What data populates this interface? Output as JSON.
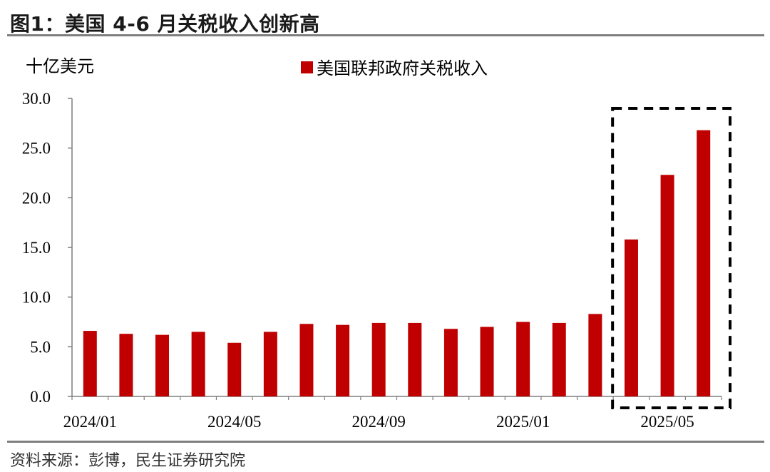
{
  "figure_title": "图1：美国 4-6 月关税收入创新高",
  "source": "资料来源：彭博，民生证券研究院",
  "chart_data": {
    "type": "bar",
    "unit_label": "十亿美元",
    "categories": [
      "2024/01",
      "2024/02",
      "2024/03",
      "2024/04",
      "2024/05",
      "2024/06",
      "2024/07",
      "2024/08",
      "2024/09",
      "2024/10",
      "2024/11",
      "2024/12",
      "2025/01",
      "2025/02",
      "2025/03",
      "2025/04",
      "2025/05",
      "2025/06"
    ],
    "x_tick_labels": [
      "2024/01",
      "2024/05",
      "2024/09",
      "2025/01",
      "2025/05"
    ],
    "series": [
      {
        "name": "美国联邦政府关税收入",
        "color": "#C00000",
        "values": [
          6.6,
          6.3,
          6.2,
          6.5,
          5.4,
          6.5,
          7.3,
          7.2,
          7.4,
          7.4,
          6.8,
          7.0,
          7.5,
          7.4,
          8.3,
          15.8,
          22.3,
          26.8
        ]
      }
    ],
    "ylim": [
      0,
      30
    ],
    "yticks": [
      "0.0",
      "5.0",
      "10.0",
      "15.0",
      "20.0",
      "25.0",
      "30.0"
    ],
    "grid": false,
    "legend_position": "top",
    "highlight_box": {
      "style": "dashed",
      "from_category": "2025/04",
      "to_category": "2025/06"
    }
  }
}
